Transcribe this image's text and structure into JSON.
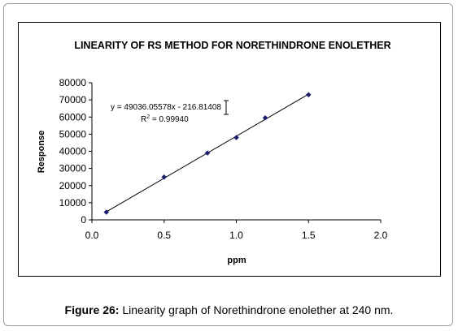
{
  "chart_data": {
    "type": "scatter",
    "title": "LINEARITY OF RS METHOD FOR NORETHINDRONE ENOLETHER",
    "xlabel": "ppm",
    "ylabel": "Response",
    "xlim": [
      0.0,
      2.0
    ],
    "ylim": [
      0,
      80000
    ],
    "x_ticks": [
      "0.0",
      "0.5",
      "1.0",
      "1.5",
      "2.0"
    ],
    "y_ticks": [
      "0",
      "10000",
      "20000",
      "30000",
      "40000",
      "50000",
      "60000",
      "70000",
      "80000"
    ],
    "points": [
      {
        "x": 0.1,
        "y": 4500
      },
      {
        "x": 0.5,
        "y": 25000
      },
      {
        "x": 0.8,
        "y": 39000
      },
      {
        "x": 1.0,
        "y": 48000
      },
      {
        "x": 1.2,
        "y": 59500
      },
      {
        "x": 1.5,
        "y": 73000
      }
    ],
    "trendline": {
      "slope": 49036.05578,
      "intercept": -216.81408,
      "equation": "y = 49036.05578x - 216.81408",
      "r2_label": "R",
      "r2_value": " = 0.99940"
    },
    "grid": false,
    "legend": "none",
    "marker_color": "#1a1a6e",
    "line_color": "#000000"
  },
  "caption": {
    "label": "Figure 26:",
    "text": " Linearity graph of Norethindrone enolether at 240 nm."
  }
}
